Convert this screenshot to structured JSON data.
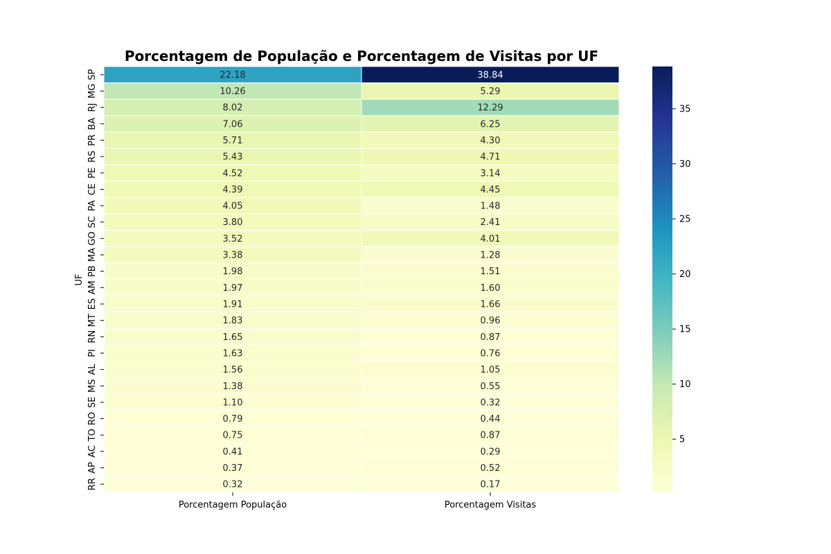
{
  "chart_data": {
    "type": "heatmap",
    "title": "Porcentagem de População e Porcentagem de Visitas por UF",
    "xlabel": "",
    "ylabel": "UF",
    "columns": [
      "Porcentagem População",
      "Porcentagem Visitas"
    ],
    "rows": [
      "SP",
      "MG",
      "RJ",
      "BA",
      "PR",
      "RS",
      "PE",
      "CE",
      "PA",
      "SC",
      "GO",
      "MA",
      "PB",
      "AM",
      "ES",
      "MT",
      "RN",
      "PI",
      "AL",
      "MS",
      "SE",
      "RO",
      "TO",
      "AC",
      "AP",
      "RR"
    ],
    "values": [
      [
        22.18,
        38.84
      ],
      [
        10.26,
        5.29
      ],
      [
        8.02,
        12.29
      ],
      [
        7.06,
        6.25
      ],
      [
        5.71,
        4.3
      ],
      [
        5.43,
        4.71
      ],
      [
        4.52,
        3.14
      ],
      [
        4.39,
        4.45
      ],
      [
        4.05,
        1.48
      ],
      [
        3.8,
        2.41
      ],
      [
        3.52,
        4.01
      ],
      [
        3.38,
        1.28
      ],
      [
        1.98,
        1.51
      ],
      [
        1.97,
        1.6
      ],
      [
        1.91,
        1.66
      ],
      [
        1.83,
        0.96
      ],
      [
        1.65,
        0.87
      ],
      [
        1.63,
        0.76
      ],
      [
        1.56,
        1.05
      ],
      [
        1.38,
        0.55
      ],
      [
        1.1,
        0.32
      ],
      [
        0.79,
        0.44
      ],
      [
        0.75,
        0.87
      ],
      [
        0.41,
        0.29
      ],
      [
        0.37,
        0.52
      ],
      [
        0.32,
        0.17
      ]
    ],
    "colormap": "YlGnBu",
    "colorbar": {
      "range": [
        0.17,
        38.84
      ],
      "ticks": [
        5,
        10,
        15,
        20,
        25,
        30,
        35
      ]
    },
    "annotation_format": "2 decimals",
    "grid": false,
    "colorbar_placement": "right"
  }
}
